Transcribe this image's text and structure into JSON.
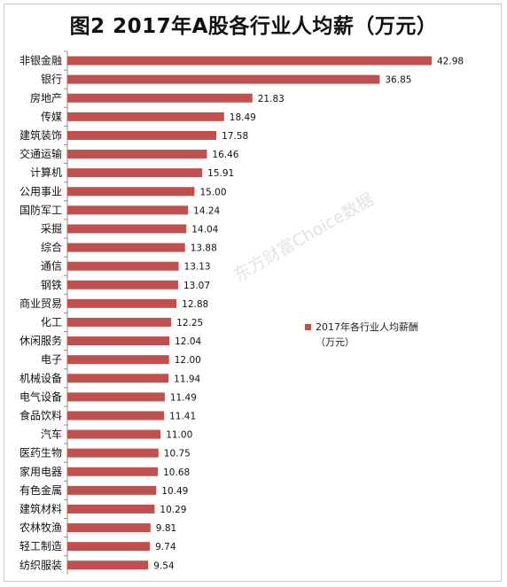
{
  "chart_data": {
    "type": "bar",
    "orientation": "horizontal",
    "title": "图2 2017年A股各行业人均薪（万元）",
    "categories": [
      "非银金融",
      "银行",
      "房地产",
      "传媒",
      "建筑装饰",
      "交通运输",
      "计算机",
      "公用事业",
      "国防军工",
      "采掘",
      "综合",
      "通信",
      "钢铁",
      "商业贸易",
      "化工",
      "休闲服务",
      "电子",
      "机械设备",
      "电气设备",
      "食品饮料",
      "汽车",
      "医药生物",
      "家用电器",
      "有色金属",
      "建筑材料",
      "农林牧渔",
      "轻工制造",
      "纺织服装"
    ],
    "series": [
      {
        "name": "2017年各行业人均薪酬（万元）",
        "values": [
          42.98,
          36.85,
          21.83,
          18.49,
          17.58,
          16.46,
          15.91,
          15.0,
          14.24,
          14.04,
          13.88,
          13.13,
          13.07,
          12.88,
          12.25,
          12.04,
          12.0,
          11.94,
          11.49,
          11.41,
          11.0,
          10.75,
          10.68,
          10.49,
          10.29,
          9.81,
          9.74,
          9.54
        ],
        "labels": [
          "42.98",
          "36.85",
          "21.83",
          "18.49",
          "17.58",
          "16.46",
          "15.91",
          "15.00",
          "14.24",
          "14.04",
          "13.88",
          "13.13",
          "13.07",
          "12.88",
          "12.25",
          "12.04",
          "12.00",
          "11.94",
          "11.49",
          "11.41",
          "11.00",
          "10.75",
          "10.68",
          "10.49",
          "10.29",
          "9.81",
          "9.74",
          "9.54"
        ],
        "color": "#c0504d"
      }
    ],
    "xlim": [
      0,
      43
    ],
    "grid": false,
    "legend_position": "right",
    "legend": {
      "line1": "2017年各行业人均薪酬",
      "line2": "（万元）"
    }
  },
  "watermark": "东方财富Choice数据"
}
